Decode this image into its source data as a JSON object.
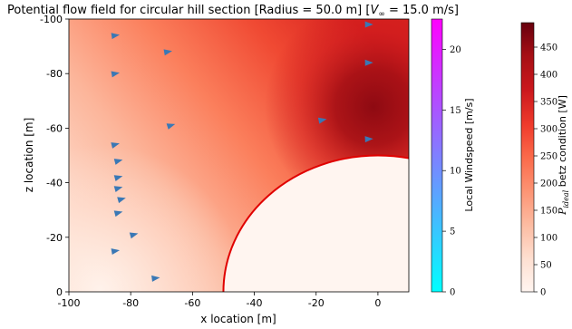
{
  "chart_data": {
    "type": "streamplot",
    "title_prefix": "Potential flow field for circular hill section [Radius = 50.0 m] [",
    "title_vinf": "V",
    "title_vinf_sub": "∞",
    "title_suffix": " = 15.0 m/s]",
    "xlabel": "x location [m]",
    "ylabel": "z location [m]",
    "xlim": [
      -100,
      10
    ],
    "ylim": [
      0,
      -100
    ],
    "x_ticks": [
      -100,
      -80,
      -60,
      -40,
      -20,
      0
    ],
    "y_ticks": [
      0,
      -20,
      -40,
      -60,
      -80,
      -100
    ],
    "x_tick_labels": [
      "-100",
      "-80",
      "-60",
      "-40",
      "-20",
      "0"
    ],
    "y_tick_labels": [
      "0",
      "-20",
      "-40",
      "-60",
      "-80",
      "-100"
    ],
    "hill": {
      "center_x": 0,
      "center_z": 0,
      "radius": 50.0,
      "color": "#e00000"
    },
    "freestream_velocity": 15.0,
    "streamline_color": "#3a78b5",
    "streamline_start_heights": [
      5,
      12,
      18,
      24,
      30,
      36,
      42,
      48,
      54,
      61,
      68,
      75,
      82,
      89,
      96
    ],
    "arrow_positions": [
      [
        -72,
        5
      ],
      [
        -85,
        15
      ],
      [
        -79,
        21
      ],
      [
        -84,
        29
      ],
      [
        -83,
        34
      ],
      [
        -84,
        38
      ],
      [
        -84,
        42
      ],
      [
        -84,
        48
      ],
      [
        -85,
        54
      ],
      [
        -67,
        61
      ],
      [
        -85,
        80
      ],
      [
        -68,
        88
      ],
      [
        -85,
        94
      ],
      [
        -18,
        63
      ],
      [
        -3,
        56
      ],
      [
        -3,
        84
      ],
      [
        -3,
        98
      ]
    ],
    "colorbar_speed": {
      "label": "Local Windspeed [m/s]",
      "min": 0,
      "max": 22.5,
      "ticks": [
        0,
        5,
        10,
        15,
        20
      ],
      "tick_labels": [
        "0",
        "5",
        "10",
        "15",
        "20"
      ],
      "colormap": "cool",
      "color_low": "#00ffff",
      "color_high": "#ff00ff"
    },
    "colorbar_power": {
      "label_prefix": "P",
      "label_sub": "ideal",
      "label_suffix": " betz condition [W]",
      "min": 0,
      "max": 495,
      "ticks": [
        0,
        50,
        100,
        150,
        200,
        250,
        300,
        350,
        400,
        450
      ],
      "tick_labels": [
        "0",
        "50",
        "100",
        "150",
        "200",
        "250",
        "300",
        "350",
        "400",
        "450"
      ],
      "colormap": "Reds",
      "color_low": "#fff5f0",
      "color_high": "#67000d"
    }
  }
}
